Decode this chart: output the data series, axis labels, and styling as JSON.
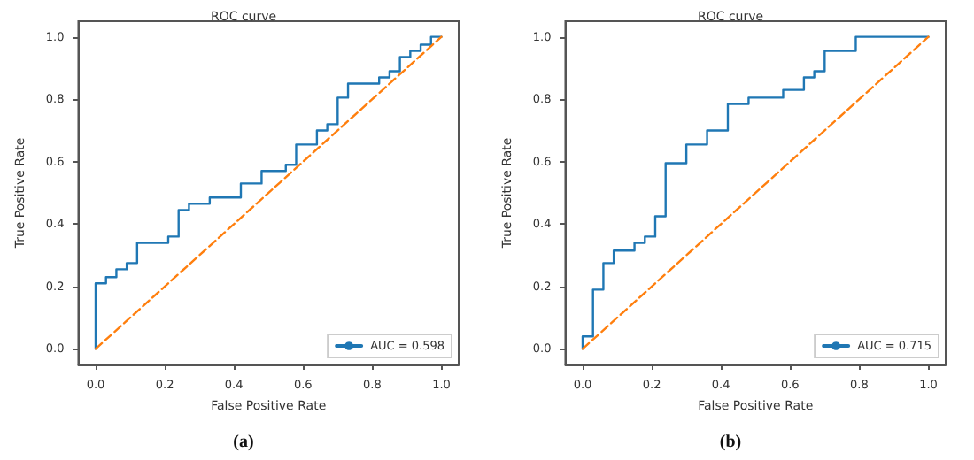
{
  "chart_data": [
    {
      "type": "line",
      "title": "ROC curve",
      "xlabel": "False Positive Rate",
      "ylabel": "True Positive Rate",
      "annotations": [
        "(a)"
      ],
      "xlim": [
        -0.05,
        1.05
      ],
      "ylim": [
        -0.05,
        1.05
      ],
      "xticks": [
        {
          "value": 0,
          "label": "0.0"
        },
        {
          "value": 0.2,
          "label": "0.2"
        },
        {
          "value": 0.4,
          "label": "0.4"
        },
        {
          "value": 0.6,
          "label": "0.6"
        },
        {
          "value": 0.8,
          "label": "0.8"
        },
        {
          "value": 1,
          "label": "1.0"
        }
      ],
      "yticks": [
        {
          "value": 0,
          "label": "0.0"
        },
        {
          "value": 0.2,
          "label": "0.2"
        },
        {
          "value": 0.4,
          "label": "0.4"
        },
        {
          "value": 0.6,
          "label": "0.6"
        },
        {
          "value": 0.8,
          "label": "0.8"
        },
        {
          "value": 1,
          "label": "1.0"
        }
      ],
      "grid": false,
      "legend": "bottom right",
      "marker": "none",
      "series": [
        {
          "name": "AUC = 0.598",
          "color": "#1f77b4",
          "line_style": "solid",
          "x": [
            0,
            0,
            0.03,
            0.03,
            0.06,
            0.06,
            0.09,
            0.09,
            0.12,
            0.12,
            0.21,
            0.21,
            0.24,
            0.24,
            0.27,
            0.27,
            0.33,
            0.33,
            0.42,
            0.42,
            0.48,
            0.48,
            0.55,
            0.55,
            0.58,
            0.58,
            0.64,
            0.64,
            0.67,
            0.67,
            0.7,
            0.7,
            0.73,
            0.73,
            0.82,
            0.82,
            0.85,
            0.85,
            0.88,
            0.88,
            0.91,
            0.91,
            0.94,
            0.94,
            0.97,
            0.97,
            1
          ],
          "values": [
            0,
            0.21,
            0.21,
            0.23,
            0.23,
            0.255,
            0.255,
            0.275,
            0.275,
            0.34,
            0.34,
            0.36,
            0.36,
            0.445,
            0.445,
            0.465,
            0.465,
            0.485,
            0.485,
            0.53,
            0.53,
            0.57,
            0.57,
            0.59,
            0.59,
            0.655,
            0.655,
            0.7,
            0.7,
            0.72,
            0.72,
            0.805,
            0.805,
            0.85,
            0.85,
            0.87,
            0.87,
            0.89,
            0.89,
            0.935,
            0.935,
            0.955,
            0.955,
            0.975,
            0.975,
            1,
            1
          ]
        },
        {
          "color": "#ff7f0e",
          "line_style": "dashed",
          "x": [
            0,
            1
          ],
          "values": [
            0,
            1
          ]
        }
      ]
    },
    {
      "type": "line",
      "title": "ROC curve",
      "xlabel": "False Positive Rate",
      "ylabel": "True Positive Rate",
      "annotations": [
        "(b)"
      ],
      "xlim": [
        -0.05,
        1.05
      ],
      "ylim": [
        -0.05,
        1.05
      ],
      "xticks": [
        {
          "value": 0,
          "label": "0.0"
        },
        {
          "value": 0.2,
          "label": "0.2"
        },
        {
          "value": 0.4,
          "label": "0.4"
        },
        {
          "value": 0.6,
          "label": "0.6"
        },
        {
          "value": 0.8,
          "label": "0.8"
        },
        {
          "value": 1,
          "label": "1.0"
        }
      ],
      "yticks": [
        {
          "value": 0,
          "label": "0.0"
        },
        {
          "value": 0.2,
          "label": "0.2"
        },
        {
          "value": 0.4,
          "label": "0.4"
        },
        {
          "value": 0.6,
          "label": "0.6"
        },
        {
          "value": 0.8,
          "label": "0.8"
        },
        {
          "value": 1,
          "label": "1.0"
        }
      ],
      "grid": false,
      "legend": "bottom right",
      "marker": "none",
      "series": [
        {
          "name": "AUC = 0.715",
          "color": "#1f77b4",
          "line_style": "solid",
          "x": [
            0,
            0,
            0.03,
            0.03,
            0.06,
            0.06,
            0.09,
            0.09,
            0.15,
            0.15,
            0.18,
            0.18,
            0.21,
            0.21,
            0.24,
            0.24,
            0.3,
            0.3,
            0.36,
            0.36,
            0.42,
            0.42,
            0.48,
            0.48,
            0.58,
            0.58,
            0.64,
            0.64,
            0.67,
            0.67,
            0.7,
            0.7,
            0.79,
            0.79,
            1
          ],
          "values": [
            0,
            0.04,
            0.04,
            0.19,
            0.19,
            0.275,
            0.275,
            0.315,
            0.315,
            0.34,
            0.34,
            0.36,
            0.36,
            0.425,
            0.425,
            0.595,
            0.595,
            0.655,
            0.655,
            0.7,
            0.7,
            0.785,
            0.785,
            0.805,
            0.805,
            0.83,
            0.83,
            0.87,
            0.87,
            0.89,
            0.89,
            0.955,
            0.955,
            1,
            1
          ]
        },
        {
          "color": "#ff7f0e",
          "line_style": "dashed",
          "x": [
            0,
            1
          ],
          "values": [
            0,
            1
          ]
        }
      ]
    }
  ]
}
